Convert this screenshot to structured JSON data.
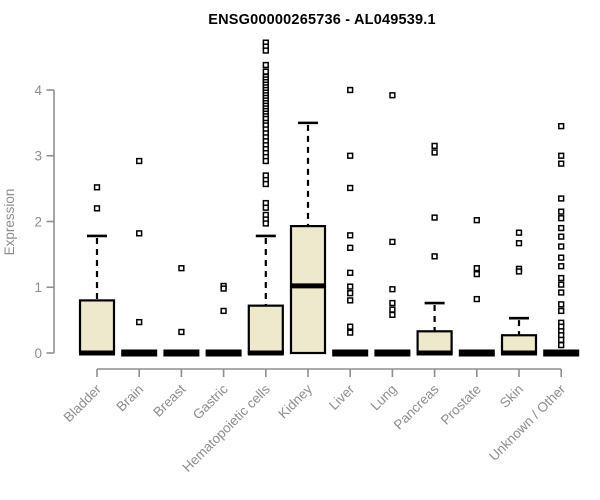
{
  "chart_data": {
    "type": "boxplot",
    "title": "ENSG00000265736 - AL049539.1",
    "ylabel": "Expression",
    "xlabel": "",
    "ylim": [
      0,
      4.75
    ],
    "yticks": [
      0,
      1,
      2,
      3,
      4
    ],
    "grid": false,
    "legend": null,
    "colors": {
      "box_fill": "#EEE8CD",
      "box_stroke": "#000000",
      "median": "#000000",
      "whisker": "#000000",
      "outlier_stroke": "#000000",
      "axis": "#8f8f8f",
      "tick_label": "#8d8d8d",
      "title": "#000000",
      "background": "#ffffff"
    },
    "categories": [
      "Bladder",
      "Brain",
      "Breast",
      "Gastric",
      "Hematopoietic cells",
      "Kidney",
      "Liver",
      "Lung",
      "Pancreas",
      "Prostate",
      "Skin",
      "Unknown / Other"
    ],
    "series": [
      {
        "category": "Bladder",
        "q1": 0,
        "median": 0,
        "q3": 0.8,
        "whisker_low": 0,
        "whisker_high": 1.78,
        "outliers": [
          2.52,
          2.2
        ]
      },
      {
        "category": "Brain",
        "q1": 0,
        "median": 0,
        "q3": 0,
        "whisker_low": 0,
        "whisker_high": 0,
        "outliers": [
          2.92,
          1.82,
          0.47
        ]
      },
      {
        "category": "Breast",
        "q1": 0,
        "median": 0,
        "q3": 0,
        "whisker_low": 0,
        "whisker_high": 0,
        "outliers": [
          1.29,
          0.32
        ]
      },
      {
        "category": "Gastric",
        "q1": 0,
        "median": 0,
        "q3": 0,
        "whisker_low": 0,
        "whisker_high": 0,
        "outliers": [
          1.02,
          0.98,
          0.64
        ]
      },
      {
        "category": "Hematopoietic cells",
        "q1": 0,
        "median": 0,
        "q3": 0.72,
        "whisker_low": 0,
        "whisker_high": 1.78,
        "outliers": [
          4.72,
          4.66,
          4.6,
          4.38,
          4.28,
          4.2,
          4.16,
          4.12,
          4.08,
          4.04,
          4.0,
          3.96,
          3.92,
          3.88,
          3.84,
          3.8,
          3.76,
          3.72,
          3.68,
          3.64,
          3.6,
          3.56,
          3.5,
          3.46,
          3.4,
          3.34,
          3.28,
          3.22,
          3.16,
          3.1,
          3.04,
          2.98,
          2.92,
          2.7,
          2.63,
          2.57,
          2.28,
          2.21,
          2.1,
          2.03,
          1.97
        ]
      },
      {
        "category": "Kidney",
        "q1": 0,
        "median": 1.02,
        "q3": 1.93,
        "whisker_low": 0,
        "whisker_high": 3.5,
        "outliers": []
      },
      {
        "category": "Liver",
        "q1": 0,
        "median": 0,
        "q3": 0,
        "whisker_low": 0,
        "whisker_high": 0,
        "outliers": [
          4.0,
          3.0,
          2.51,
          1.79,
          1.6,
          1.22,
          1.01,
          0.91,
          0.8,
          0.4,
          0.31
        ]
      },
      {
        "category": "Lung",
        "q1": 0,
        "median": 0,
        "q3": 0,
        "whisker_low": 0,
        "whisker_high": 0,
        "outliers": [
          3.92,
          1.69,
          0.97,
          0.76,
          0.66,
          0.58
        ]
      },
      {
        "category": "Pancreas",
        "q1": 0,
        "median": 0,
        "q3": 0.33,
        "whisker_low": 0,
        "whisker_high": 0.76,
        "outliers": [
          3.15,
          3.05,
          2.06,
          1.47
        ]
      },
      {
        "category": "Prostate",
        "q1": 0,
        "median": 0,
        "q3": 0,
        "whisker_low": 0,
        "whisker_high": 0,
        "outliers": [
          2.02,
          1.29,
          1.2,
          0.82
        ]
      },
      {
        "category": "Skin",
        "q1": 0,
        "median": 0,
        "q3": 0.27,
        "whisker_low": 0,
        "whisker_high": 0.53,
        "outliers": [
          1.83,
          1.67,
          1.28,
          1.24
        ]
      },
      {
        "category": "Unknown / Other",
        "q1": 0,
        "median": 0,
        "q3": 0,
        "whisker_low": 0,
        "whisker_high": 0,
        "outliers": [
          3.45,
          3.0,
          2.88,
          2.35,
          2.15,
          2.05,
          1.9,
          1.77,
          1.62,
          1.45,
          1.32,
          1.14,
          1.04,
          0.92,
          0.74,
          0.64,
          0.46,
          0.4,
          0.33,
          0.27,
          0.2,
          0.12
        ]
      }
    ]
  }
}
